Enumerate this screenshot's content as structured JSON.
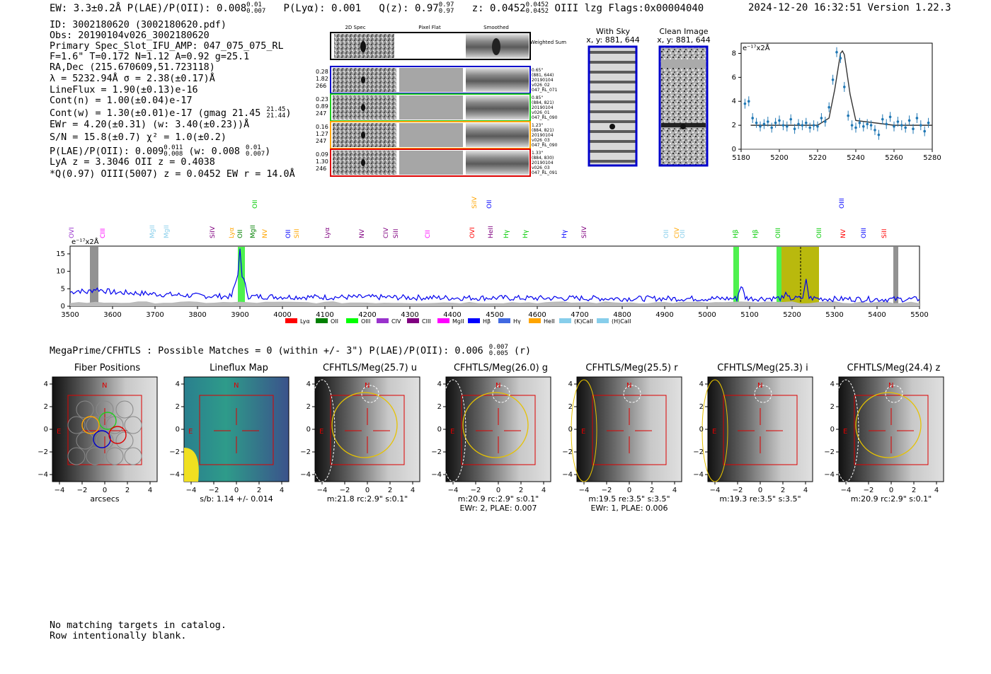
{
  "header": {
    "left": "EW: 3.3±0.2Å  P(LAE)/P(OII): 0.008",
    "left_sup": "0.01",
    "left_sub": "0.007",
    "plya": "P(Lyα): 0.001",
    "qz": "Q(z): 0.97",
    "qz_sup": "0.97",
    "qz_sub": "0.97",
    "z": "z: 0.0452",
    "z_sup": "0.0452",
    "z_sub": "0.0452",
    "tail": "OIII  lzg  Flags:0x00004040",
    "right": "2024-12-20 16:32:51  Version 1.22.3"
  },
  "info": {
    "id": "ID: 3002180620 (3002180620.pdf)",
    "obs": "Obs: 20190104v026_3002180620",
    "slot": "Primary Spec_Slot_IFU_AMP: 047_075_075_RL",
    "fth": "F=1.6\"  T=0.172  N=1.12  A=0.92  g=25.1",
    "radec": "RA,Dec (215.670609,51.723118)",
    "lambda": "λ = 5232.94Å  σ = 2.38(±0.17)Å",
    "lineflux": "LineFlux = 1.90(±0.13)e-16",
    "contn": "Cont(n) = 1.00(±0.04)e-17",
    "contw": "Cont(w) = 1.30(±0.01)e-17 (gmag 21.45",
    "contw_sup": "21.45",
    "contw_sub": "21.44",
    "ewr": "EWr = 4.20(±0.31) (w: 3.40(±0.23))Å",
    "sn": "S/N = 15.8(±0.7)  χ² = 1.0(±0.2)",
    "plae": "P(LAE)/P(OII): 0.009",
    "plae_sup": "0.011",
    "plae_sub": "0.008",
    "plae_w": "(w: 0.008",
    "plae_w_sup": "0.01",
    "plae_w_sub": "0.007",
    "lya": "LyA z = 3.3046  OII z = 0.4038",
    "q": "*Q(0.97) OIII(5007) z = 0.0452  EW r = 14.0Å"
  },
  "fibers": {
    "col_titles": [
      "2D Spec",
      "Pixel Flat",
      "Smoothed"
    ],
    "weighted_label": "Weighted Sum",
    "rows": [
      {
        "stats": [
          "0.28",
          "1.82",
          "266"
        ],
        "meta": [
          "0.65\"",
          "(881, 644)",
          "20190104",
          "v026_02",
          "047_RL_071"
        ],
        "color": "#0000cc"
      },
      {
        "stats": [
          "0.23",
          "0.89",
          "247"
        ],
        "meta": [
          "0.85\"",
          "(884, 821)",
          "20190104",
          "v026_01",
          "047_RL_090"
        ],
        "color": "#22cc22"
      },
      {
        "stats": [
          "0.16",
          "1.27",
          "247"
        ],
        "meta": [
          "1.23\"",
          "(884, 821)",
          "20190104",
          "v026_03",
          "047_RL_090"
        ],
        "color": "#ffa500"
      },
      {
        "stats": [
          "0.09",
          "1.30",
          "246"
        ],
        "meta": [
          "1.33\"",
          "(884, 830)",
          "20190104",
          "v026_03",
          "047_RL_091"
        ],
        "color": "#dd0000"
      }
    ]
  },
  "cutouts": {
    "with_sky": "With Sky",
    "with_sky_xy": "x, y: 881, 644",
    "clean": "Clean Image",
    "clean_xy": "x, y: 881, 644"
  },
  "zoom_chart": {
    "unit": "e⁻¹⁷x2Å"
  },
  "spectrum": {
    "unit": "e⁻¹⁷x2Å",
    "legend": [
      "Lyα",
      "OII",
      "OIII",
      "CIV",
      "CIII",
      "MgII",
      "Hβ",
      "Hγ",
      "HeII",
      "(K)CaII",
      "(H)CaII"
    ],
    "legend_colors": [
      "#ff0000",
      "#008000",
      "#00ff00",
      "#9932cc",
      "#800080",
      "#ff00ff",
      "#0000ff",
      "#4169e1",
      "#ffa500",
      "#87ceeb",
      "#87ceeb"
    ],
    "line_labels": [
      {
        "text": "OVI",
        "color": "#9932cc"
      },
      {
        "text": "CIII",
        "color": "#ff00ff"
      },
      {
        "text": "MgII",
        "color": "#87ceeb"
      },
      {
        "text": "MgII",
        "color": "#87ceeb"
      },
      {
        "text": "SiIV",
        "color": "#800080"
      },
      {
        "text": "Lyα",
        "color": "#ffa500"
      },
      {
        "text": "OII",
        "color": "#008000"
      },
      {
        "text": "MgII",
        "color": "#008000"
      },
      {
        "text": "OII",
        "color": "#00cc00"
      },
      {
        "text": "NV",
        "color": "#ffa500"
      },
      {
        "text": "OII",
        "color": "#0000ff"
      },
      {
        "text": "SiII",
        "color": "#ffa500"
      },
      {
        "text": "Lyα",
        "color": "#800080"
      },
      {
        "text": "NV",
        "color": "#800080"
      },
      {
        "text": "CIV",
        "color": "#800080"
      },
      {
        "text": "SiII",
        "color": "#800080"
      },
      {
        "text": "CII",
        "color": "#ff00ff"
      },
      {
        "text": "OVI",
        "color": "#ff0000"
      },
      {
        "text": "SiIV",
        "color": "#ffa500"
      },
      {
        "text": "OII",
        "color": "#0000ff"
      },
      {
        "text": "HeII",
        "color": "#800080"
      },
      {
        "text": "Hγ",
        "color": "#00cc00"
      },
      {
        "text": "Hγ",
        "color": "#00cc00"
      },
      {
        "text": "Hγ",
        "color": "#0000ff"
      },
      {
        "text": "SiIV",
        "color": "#800080"
      },
      {
        "text": "OII",
        "color": "#87ceeb"
      },
      {
        "text": "CIV",
        "color": "#ffa500"
      },
      {
        "text": "OII",
        "color": "#87ceeb"
      },
      {
        "text": "Hβ",
        "color": "#00cc00"
      },
      {
        "text": "Hβ",
        "color": "#00cc00"
      },
      {
        "text": "OIII",
        "color": "#00cc00"
      },
      {
        "text": "OIII",
        "color": "#00cc00"
      },
      {
        "text": "NV",
        "color": "#ff0000"
      },
      {
        "text": "OIII",
        "color": "#0000ff"
      },
      {
        "text": "OIII",
        "color": "#0000ff"
      },
      {
        "text": "SiII",
        "color": "#ff0000"
      }
    ]
  },
  "chart_data": [
    {
      "type": "line",
      "title": "Full spectrum",
      "xlabel": "",
      "ylabel": "e⁻¹⁷x2Å",
      "xlim": [
        3500,
        5500
      ],
      "ylim": [
        0,
        16
      ],
      "xticks": [
        3500,
        3600,
        3700,
        3800,
        3900,
        4000,
        4100,
        4200,
        4300,
        4400,
        4500,
        4600,
        4700,
        4800,
        4900,
        5000,
        5100,
        5200,
        5300,
        5400,
        5500
      ],
      "yticks": [
        0,
        5,
        10,
        15
      ],
      "series": [
        {
          "name": "spectrum",
          "x": [
            3500,
            3520,
            3540,
            3560,
            3580,
            3600,
            3650,
            3700,
            3800,
            3880,
            3895,
            3900,
            3905,
            3920,
            4000,
            4100,
            4200,
            4300,
            4400,
            4500,
            4600,
            4700,
            4800,
            4900,
            5000,
            5070,
            5080,
            5090,
            5100,
            5180,
            5185,
            5190,
            5200,
            5225,
            5233,
            5240,
            5260,
            5300,
            5400,
            5500
          ],
          "y": [
            4.0,
            4.5,
            4.0,
            5.0,
            4.5,
            4.0,
            3.8,
            3.5,
            3.0,
            2.8,
            9,
            16.5,
            9,
            2.8,
            2.7,
            2.6,
            2.6,
            2.5,
            2.4,
            2.4,
            2.3,
            2.3,
            2.2,
            2.2,
            2.2,
            2.2,
            6.0,
            2.5,
            2.2,
            2.3,
            4.0,
            2.4,
            2.2,
            2.3,
            7.8,
            2.4,
            2.2,
            2.1,
            2.0,
            2.0
          ]
        }
      ]
    },
    {
      "type": "scatter",
      "title": "Zoomed line fit",
      "xlim": [
        5180,
        5280
      ],
      "ylim": [
        0,
        8.5
      ],
      "xticks": [
        5180,
        5200,
        5220,
        5240,
        5260,
        5280
      ],
      "yticks": [
        0,
        2,
        4,
        6,
        8
      ],
      "series": [
        {
          "name": "data",
          "x": [
            5182,
            5184,
            5186,
            5188,
            5190,
            5192,
            5194,
            5196,
            5198,
            5200,
            5202,
            5204,
            5206,
            5208,
            5210,
            5212,
            5214,
            5216,
            5218,
            5220,
            5222,
            5224,
            5226,
            5228,
            5230,
            5232,
            5234,
            5236,
            5238,
            5240,
            5242,
            5244,
            5246,
            5248,
            5250,
            5252,
            5254,
            5256,
            5258,
            5260,
            5262,
            5264,
            5266,
            5268,
            5270,
            5272,
            5274,
            5276,
            5278
          ],
          "y": [
            3.8,
            4.0,
            2.6,
            2.2,
            1.9,
            2.1,
            2.3,
            1.8,
            2.2,
            2.4,
            2.0,
            1.9,
            2.5,
            1.7,
            2.1,
            2.0,
            2.2,
            1.8,
            2.0,
            1.9,
            2.6,
            2.3,
            3.5,
            5.8,
            8.1,
            7.6,
            5.2,
            2.8,
            2.0,
            1.8,
            2.2,
            1.9,
            2.1,
            2.0,
            1.6,
            1.2,
            2.5,
            2.1,
            2.7,
            1.9,
            2.3,
            2.0,
            1.8,
            2.4,
            1.7,
            2.6,
            2.0,
            1.5,
            2.2
          ]
        },
        {
          "name": "fit",
          "x": [
            5185,
            5200,
            5220,
            5226,
            5229,
            5232,
            5233,
            5234,
            5237,
            5240,
            5260,
            5280
          ],
          "y": [
            2.0,
            2.0,
            2.0,
            2.6,
            5.0,
            8.0,
            8.2,
            7.9,
            4.6,
            2.4,
            2.0,
            2.0
          ]
        }
      ]
    }
  ],
  "imaging": {
    "line": "MegaPrime/CFHTLS : Possible Matches = 0 (within +/- 3\")  P(LAE)/P(OII): 0.006",
    "line_sup": "0.007",
    "line_sub": "0.005",
    "line_tail": "(r)",
    "panels": [
      {
        "title": "Fiber Positions",
        "caption": "arcsecs",
        "caption2": ""
      },
      {
        "title": "Lineflux Map",
        "caption": "s/b: 1.14 +/- 0.014",
        "caption2": ""
      },
      {
        "title": "CFHTLS/Meg(25.7) u",
        "caption": "m:21.8 rc:2.9\"  s:0.1\"",
        "caption2": ""
      },
      {
        "title": "CFHTLS/Meg(26.0) g",
        "caption": "m:20.9 rc:2.9\"  s:0.1\"",
        "caption2": "EWr: 2, PLAE: 0.007"
      },
      {
        "title": "CFHTLS/Meg(25.5) r",
        "caption": "m:19.5  re:3.5\"  s:3.5\"",
        "caption2": "EWr: 1, PLAE: 0.006"
      },
      {
        "title": "CFHTLS/Meg(25.3) i",
        "caption": "m:19.3  re:3.5\"  s:3.5\"",
        "caption2": ""
      },
      {
        "title": "CFHTLS/Meg(24.4) z",
        "caption": "m:20.9 rc:2.9\"  s:0.1\"",
        "caption2": ""
      }
    ],
    "axis_ticks": [
      "−4",
      "−2",
      "0",
      "2",
      "4"
    ],
    "north": "N",
    "east": "E"
  },
  "footer": {
    "line1": "No matching targets in catalog.",
    "line2": "Row intentionally blank."
  }
}
